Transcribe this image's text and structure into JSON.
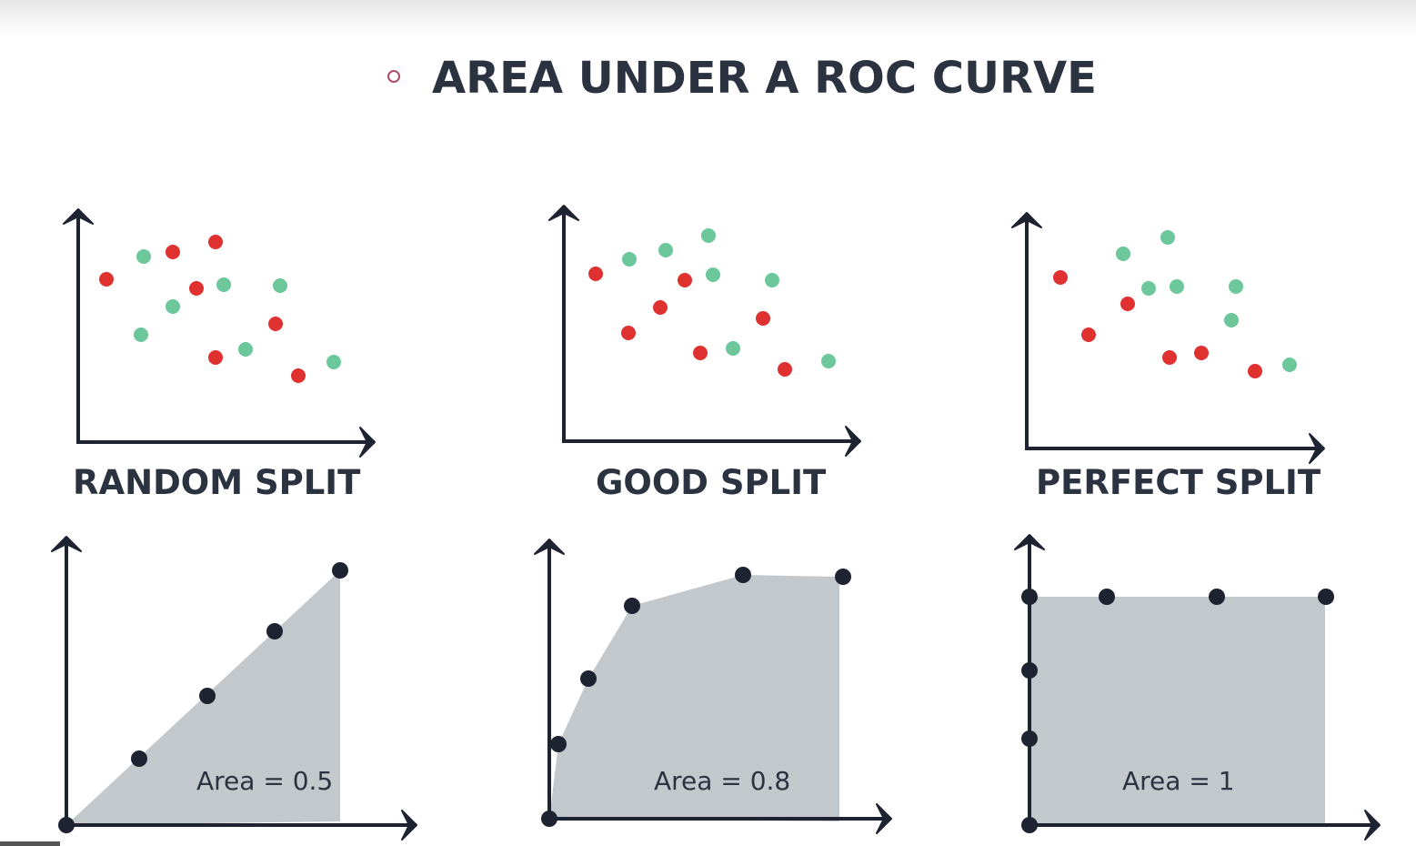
{
  "title": "AREA UNDER A ROC CURVE",
  "panels": [
    {
      "label": "RANDOM SPLIT",
      "area_label": "Area = 0.5"
    },
    {
      "label": "GOOD SPLIT",
      "area_label": "Area = 0.8"
    },
    {
      "label": "PERFECT SPLIT",
      "area_label": "Area = 1"
    }
  ]
}
